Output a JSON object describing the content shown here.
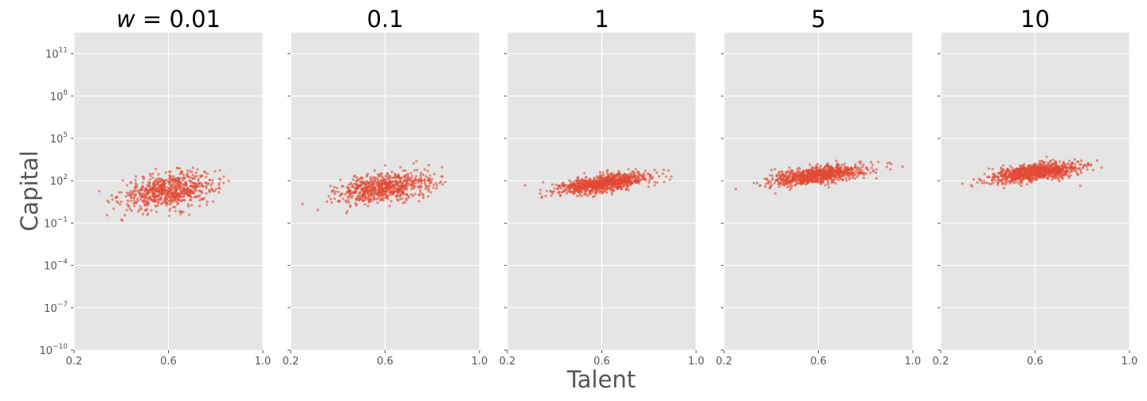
{
  "chart_data": {
    "type": "scatter",
    "xlabel": "Talent",
    "ylabel": "Capital",
    "x_range": [
      0.2,
      1.0
    ],
    "x_ticks": [
      "0.2",
      "0.6",
      "1.0"
    ],
    "y_scale": "log",
    "y_range_log10": [
      -10,
      12.5
    ],
    "y_ticks": [
      {
        "exp": -10,
        "base": "10",
        "sup": "−10"
      },
      {
        "exp": -7,
        "base": "10",
        "sup": "−7"
      },
      {
        "exp": -4,
        "base": "10",
        "sup": "−4"
      },
      {
        "exp": -1,
        "base": "10",
        "sup": "−1"
      },
      {
        "exp": 2,
        "base": "10",
        "sup": "2"
      },
      {
        "exp": 5,
        "base": "10",
        "sup": "5"
      },
      {
        "exp": 8,
        "base": "10",
        "sup": "8"
      },
      {
        "exp": 11,
        "base": "10",
        "sup": "11"
      }
    ],
    "grid": true,
    "sharey": true,
    "point_color": "#E24A33",
    "panel_background": "#E5E5E5",
    "panels": [
      {
        "title_prefix": "w",
        "title": " = 0.01",
        "talent_mean": 0.6,
        "talent_sd": 0.1,
        "log10_mean": 1.3,
        "log10_sd": 0.6,
        "slope": 2.0,
        "n": 700
      },
      {
        "title_prefix": "",
        "title": "0.1",
        "talent_mean": 0.6,
        "talent_sd": 0.1,
        "log10_mean": 1.5,
        "log10_sd": 0.5,
        "slope": 2.0,
        "n": 700
      },
      {
        "title_prefix": "",
        "title": "1",
        "talent_mean": 0.6,
        "talent_sd": 0.1,
        "log10_mean": 1.8,
        "log10_sd": 0.3,
        "slope": 2.0,
        "n": 900
      },
      {
        "title_prefix": "",
        "title": "5",
        "talent_mean": 0.6,
        "talent_sd": 0.1,
        "log10_mean": 2.4,
        "log10_sd": 0.3,
        "slope": 2.0,
        "n": 900
      },
      {
        "title_prefix": "",
        "title": "10",
        "talent_mean": 0.6,
        "talent_sd": 0.1,
        "log10_mean": 2.6,
        "log10_sd": 0.3,
        "slope": 2.0,
        "n": 900
      }
    ]
  }
}
